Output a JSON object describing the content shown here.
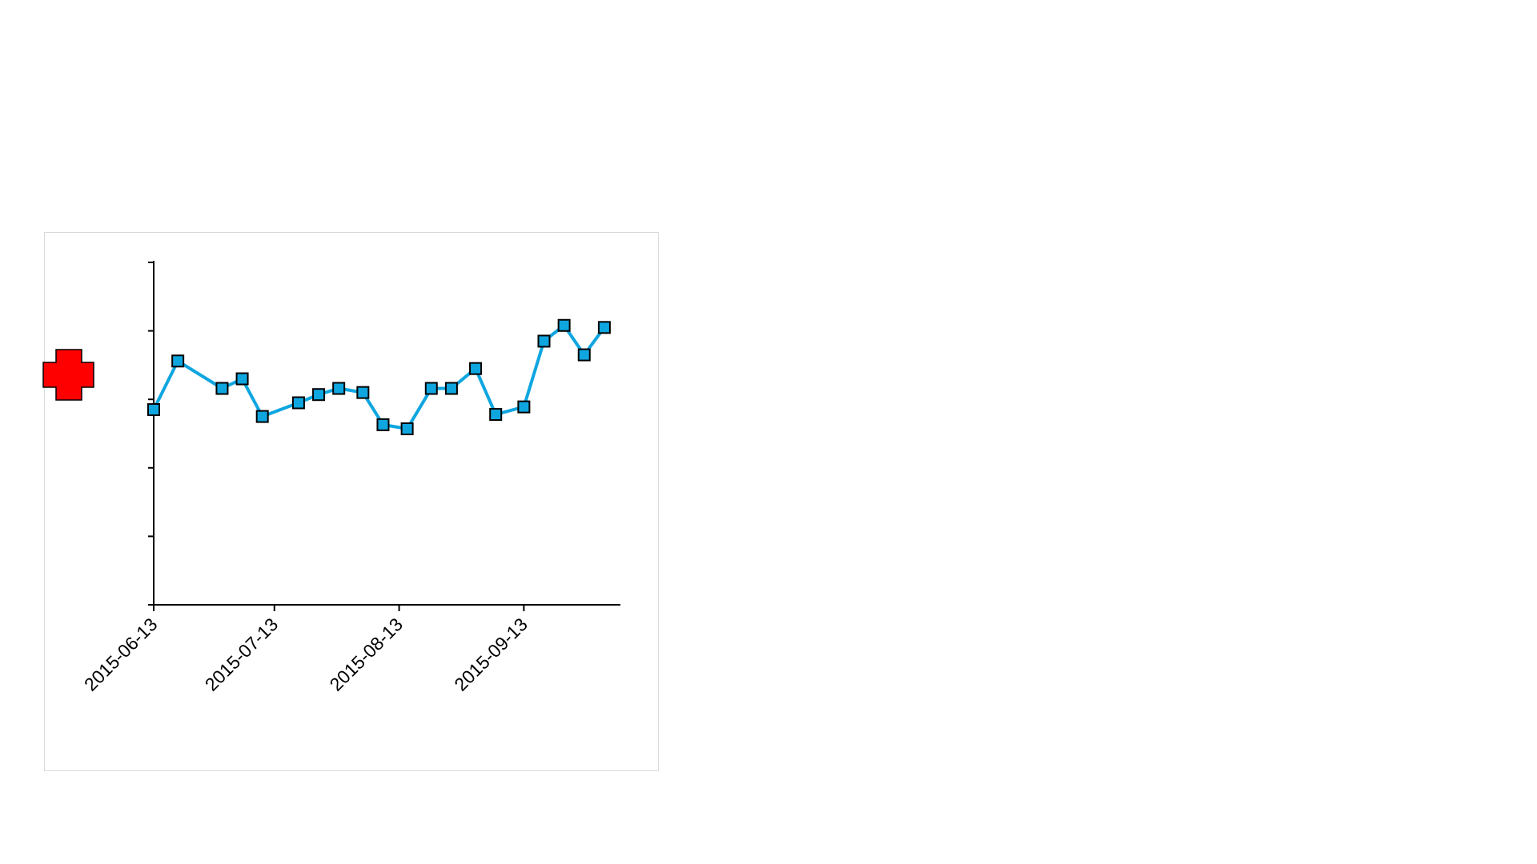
{
  "chart_data": {
    "type": "line",
    "title": "",
    "xlabel": "",
    "ylabel": "",
    "x_tick_labels": [
      "2015-06-13",
      "2015-07-13",
      "2015-08-13",
      "2015-09-13"
    ],
    "y_ticks": [
      0,
      1,
      2,
      3,
      4,
      5
    ],
    "ylim": [
      0,
      5
    ],
    "xlim": [
      "2015-06-13",
      "2015-10-07"
    ],
    "grid": false,
    "legend": "none",
    "y_tick_labels_visible": false,
    "series": [
      {
        "color": "#0fa6e0",
        "marker": "square",
        "x": [
          "2015-06-13",
          "2015-06-19",
          "2015-06-30",
          "2015-07-05",
          "2015-07-10",
          "2015-07-19",
          "2015-07-24",
          "2015-07-29",
          "2015-08-04",
          "2015-08-09",
          "2015-08-15",
          "2015-08-21",
          "2015-08-26",
          "2015-09-01",
          "2015-09-06",
          "2015-09-13",
          "2015-09-18",
          "2015-09-23",
          "2015-09-28",
          "2015-10-03"
        ],
        "values": [
          2.85,
          3.56,
          3.16,
          3.3,
          2.75,
          2.95,
          3.07,
          3.16,
          3.1,
          2.63,
          2.57,
          3.16,
          3.16,
          3.45,
          2.78,
          2.89,
          3.85,
          4.08,
          3.65,
          4.05
        ]
      }
    ]
  },
  "decorations": {
    "plus_icon_color": "#ff0000"
  }
}
